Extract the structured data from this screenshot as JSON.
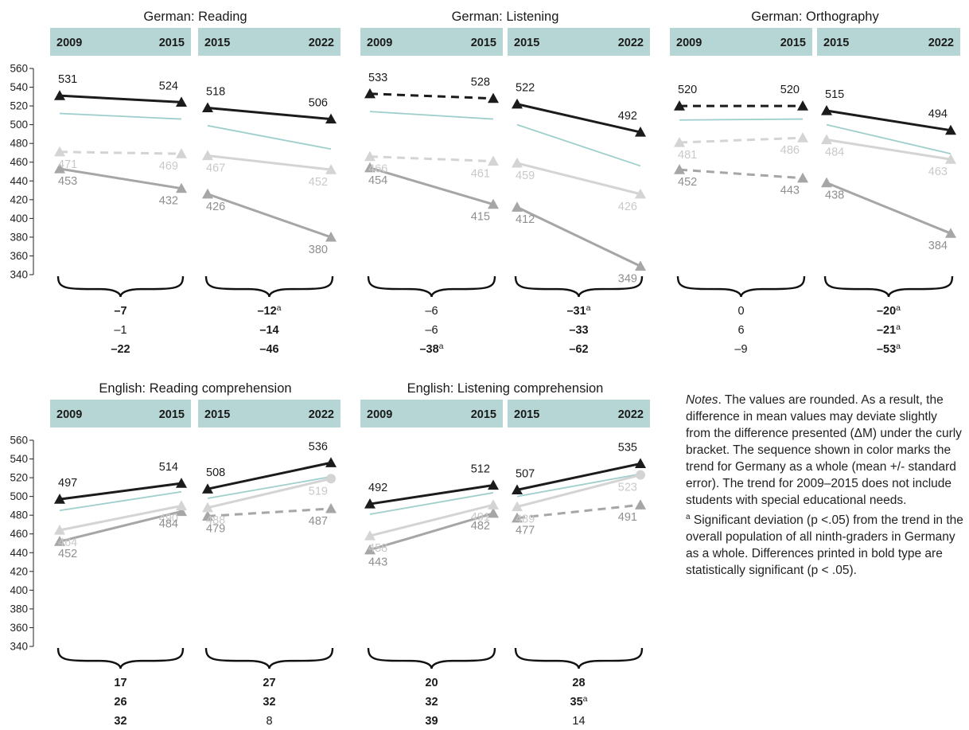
{
  "colors": {
    "header_bg": "#b5d6d5",
    "black": "#1b1b1b",
    "teal": "#9fcfcc",
    "light_gray": "#d4d4d4",
    "mid_gray": "#a6a6a6"
  },
  "notes": {
    "title": "Notes",
    "body": ". The values are rounded. As a result, the difference in mean values may deviate slightly from the difference presented (ΔM) under the curly bracket. The sequence shown in color marks the trend for Germany as a whole (mean +/- standard error). The trend for 2009–2015 does not include students with special educational needs.",
    "footnote_marker": "a",
    "footnote": " Significant deviation (p <.05) from the trend in the overall population of all ninth-graders in Germany as a whole. Differences printed in bold type are statistically significant (p < .05)."
  },
  "chart_data": [
    {
      "type": "line",
      "title": "German: Reading",
      "yticks": [
        340,
        360,
        380,
        400,
        420,
        440,
        460,
        480,
        500,
        520,
        540,
        560
      ],
      "ylim": [
        340,
        560
      ],
      "panels": [
        {
          "x": [
            "2009",
            "2015"
          ],
          "series": [
            {
              "values": [
                531,
                524
              ],
              "style": "black-solid",
              "labels": [
                "531",
                "524"
              ]
            },
            {
              "values": [
                512,
                506
              ],
              "style": "teal"
            },
            {
              "values": [
                471,
                469
              ],
              "style": "light-dashed",
              "labels": [
                "471",
                "469"
              ]
            },
            {
              "values": [
                453,
                432
              ],
              "style": "mid-solid",
              "labels": [
                "453",
                "432"
              ]
            }
          ],
          "differences": [
            {
              "value": "–7",
              "bold": true,
              "sup": ""
            },
            {
              "value": "–1",
              "bold": false,
              "sup": ""
            },
            {
              "value": "–22",
              "bold": true,
              "sup": ""
            }
          ]
        },
        {
          "x": [
            "2015",
            "2022"
          ],
          "series": [
            {
              "values": [
                518,
                506
              ],
              "style": "black-solid",
              "labels": [
                "518",
                "506"
              ]
            },
            {
              "values": [
                499,
                474
              ],
              "style": "teal"
            },
            {
              "values": [
                467,
                452
              ],
              "style": "light-solid",
              "labels": [
                "467",
                "452"
              ]
            },
            {
              "values": [
                426,
                380
              ],
              "style": "mid-solid",
              "labels": [
                "426",
                "380"
              ]
            }
          ],
          "differences": [
            {
              "value": "–12",
              "bold": true,
              "sup": "a"
            },
            {
              "value": "–14",
              "bold": true,
              "sup": ""
            },
            {
              "value": "–46",
              "bold": true,
              "sup": ""
            }
          ]
        }
      ]
    },
    {
      "type": "line",
      "title": "German: Listening",
      "yticks": [
        340,
        360,
        380,
        400,
        420,
        440,
        460,
        480,
        500,
        520,
        540,
        560
      ],
      "ylim": [
        340,
        560
      ],
      "panels": [
        {
          "x": [
            "2009",
            "2015"
          ],
          "series": [
            {
              "values": [
                533,
                528
              ],
              "style": "black-dashed",
              "labels": [
                "533",
                "528"
              ]
            },
            {
              "values": [
                514,
                506
              ],
              "style": "teal"
            },
            {
              "values": [
                466,
                461
              ],
              "style": "light-dashed",
              "labels": [
                "466",
                "461"
              ]
            },
            {
              "values": [
                454,
                415
              ],
              "style": "mid-solid",
              "labels": [
                "454",
                "415"
              ]
            }
          ],
          "differences": [
            {
              "value": "–6",
              "bold": false,
              "sup": ""
            },
            {
              "value": "–6",
              "bold": false,
              "sup": ""
            },
            {
              "value": "–38",
              "bold": true,
              "sup": "a"
            }
          ]
        },
        {
          "x": [
            "2015",
            "2022"
          ],
          "series": [
            {
              "values": [
                522,
                492
              ],
              "style": "black-solid",
              "labels": [
                "522",
                "492"
              ]
            },
            {
              "values": [
                500,
                456
              ],
              "style": "teal"
            },
            {
              "values": [
                459,
                426
              ],
              "style": "light-solid",
              "labels": [
                "459",
                "426"
              ]
            },
            {
              "values": [
                412,
                349
              ],
              "style": "mid-solid",
              "labels": [
                "412",
                "349"
              ]
            }
          ],
          "differences": [
            {
              "value": "–31",
              "bold": true,
              "sup": "a"
            },
            {
              "value": "–33",
              "bold": true,
              "sup": ""
            },
            {
              "value": "–62",
              "bold": true,
              "sup": ""
            }
          ]
        }
      ]
    },
    {
      "type": "line",
      "title": "German: Orthography",
      "yticks": [
        340,
        360,
        380,
        400,
        420,
        440,
        460,
        480,
        500,
        520,
        540,
        560
      ],
      "ylim": [
        340,
        560
      ],
      "panels": [
        {
          "x": [
            "2009",
            "2015"
          ],
          "series": [
            {
              "values": [
                520,
                520
              ],
              "style": "black-dashed",
              "labels": [
                "520",
                "520"
              ]
            },
            {
              "values": [
                505,
                506
              ],
              "style": "teal"
            },
            {
              "values": [
                481,
                486
              ],
              "style": "light-dashed",
              "labels": [
                "481",
                "486"
              ]
            },
            {
              "values": [
                452,
                443
              ],
              "style": "mid-dashed",
              "labels": [
                "452",
                "443"
              ]
            }
          ],
          "differences": [
            {
              "value": "0",
              "bold": false,
              "sup": ""
            },
            {
              "value": "6",
              "bold": false,
              "sup": ""
            },
            {
              "value": "–9",
              "bold": false,
              "sup": ""
            }
          ]
        },
        {
          "x": [
            "2015",
            "2022"
          ],
          "series": [
            {
              "values": [
                515,
                494
              ],
              "style": "black-solid",
              "labels": [
                "515",
                "494"
              ]
            },
            {
              "values": [
                500,
                469
              ],
              "style": "teal"
            },
            {
              "values": [
                484,
                463
              ],
              "style": "light-solid",
              "labels": [
                "484",
                "463"
              ]
            },
            {
              "values": [
                438,
                384
              ],
              "style": "mid-solid",
              "labels": [
                "438",
                "384"
              ]
            }
          ],
          "differences": [
            {
              "value": "–20",
              "bold": true,
              "sup": "a"
            },
            {
              "value": "–21",
              "bold": true,
              "sup": "a"
            },
            {
              "value": "–53",
              "bold": true,
              "sup": "a"
            }
          ]
        }
      ]
    },
    {
      "type": "line",
      "title": "English: Reading comprehension",
      "yticks": [
        340,
        360,
        380,
        400,
        420,
        440,
        460,
        480,
        500,
        520,
        540,
        560
      ],
      "ylim": [
        340,
        560
      ],
      "panels": [
        {
          "x": [
            "2009",
            "2015"
          ],
          "series": [
            {
              "values": [
                497,
                514
              ],
              "style": "black-solid",
              "labels": [
                "497",
                "514"
              ]
            },
            {
              "values": [
                485,
                505
              ],
              "style": "teal"
            },
            {
              "values": [
                464,
                490
              ],
              "style": "light-solid",
              "labels": [
                "464",
                "490"
              ]
            },
            {
              "values": [
                452,
                484
              ],
              "style": "mid-solid",
              "labels": [
                "452",
                "484"
              ]
            }
          ],
          "differences": [
            {
              "value": "17",
              "bold": true,
              "sup": ""
            },
            {
              "value": "26",
              "bold": true,
              "sup": ""
            },
            {
              "value": "32",
              "bold": true,
              "sup": ""
            }
          ]
        },
        {
          "x": [
            "2015",
            "2022"
          ],
          "series": [
            {
              "values": [
                508,
                536
              ],
              "style": "black-solid",
              "labels": [
                "508",
                "536"
              ]
            },
            {
              "values": [
                498,
                521
              ],
              "style": "teal"
            },
            {
              "values": [
                488,
                519
              ],
              "style": "light-solid",
              "end": "circle",
              "labels": [
                "488",
                "519"
              ]
            },
            {
              "values": [
                479,
                487
              ],
              "style": "mid-dashed",
              "labels": [
                "479",
                "487"
              ]
            }
          ],
          "differences": [
            {
              "value": "27",
              "bold": true,
              "sup": ""
            },
            {
              "value": "32",
              "bold": true,
              "sup": ""
            },
            {
              "value": "8",
              "bold": false,
              "sup": ""
            }
          ]
        }
      ]
    },
    {
      "type": "line",
      "title": "English: Listening comprehension",
      "yticks": [
        340,
        360,
        380,
        400,
        420,
        440,
        460,
        480,
        500,
        520,
        540,
        560
      ],
      "ylim": [
        340,
        560
      ],
      "panels": [
        {
          "x": [
            "2009",
            "2015"
          ],
          "series": [
            {
              "values": [
                492,
                512
              ],
              "style": "black-solid",
              "labels": [
                "492",
                "512"
              ]
            },
            {
              "values": [
                481,
                504
              ],
              "style": "teal"
            },
            {
              "values": [
                458,
                491
              ],
              "style": "light-solid",
              "labels": [
                "458",
                "491"
              ]
            },
            {
              "values": [
                443,
                482
              ],
              "style": "mid-solid",
              "labels": [
                "443",
                "482"
              ]
            }
          ],
          "differences": [
            {
              "value": "20",
              "bold": true,
              "sup": ""
            },
            {
              "value": "32",
              "bold": true,
              "sup": ""
            },
            {
              "value": "39",
              "bold": true,
              "sup": ""
            }
          ]
        },
        {
          "x": [
            "2015",
            "2022"
          ],
          "series": [
            {
              "values": [
                507,
                535
              ],
              "style": "black-solid",
              "labels": [
                "507",
                "535"
              ]
            },
            {
              "values": [
                500,
                524
              ],
              "style": "teal"
            },
            {
              "values": [
                489,
                523
              ],
              "style": "light-solid",
              "end": "circle",
              "labels": [
                "489",
                "523"
              ]
            },
            {
              "values": [
                477,
                491
              ],
              "style": "mid-dashed",
              "labels": [
                "477",
                "491"
              ]
            }
          ],
          "differences": [
            {
              "value": "28",
              "bold": true,
              "sup": ""
            },
            {
              "value": "35",
              "bold": true,
              "sup": "a"
            },
            {
              "value": "14",
              "bold": false,
              "sup": ""
            }
          ]
        }
      ]
    }
  ]
}
